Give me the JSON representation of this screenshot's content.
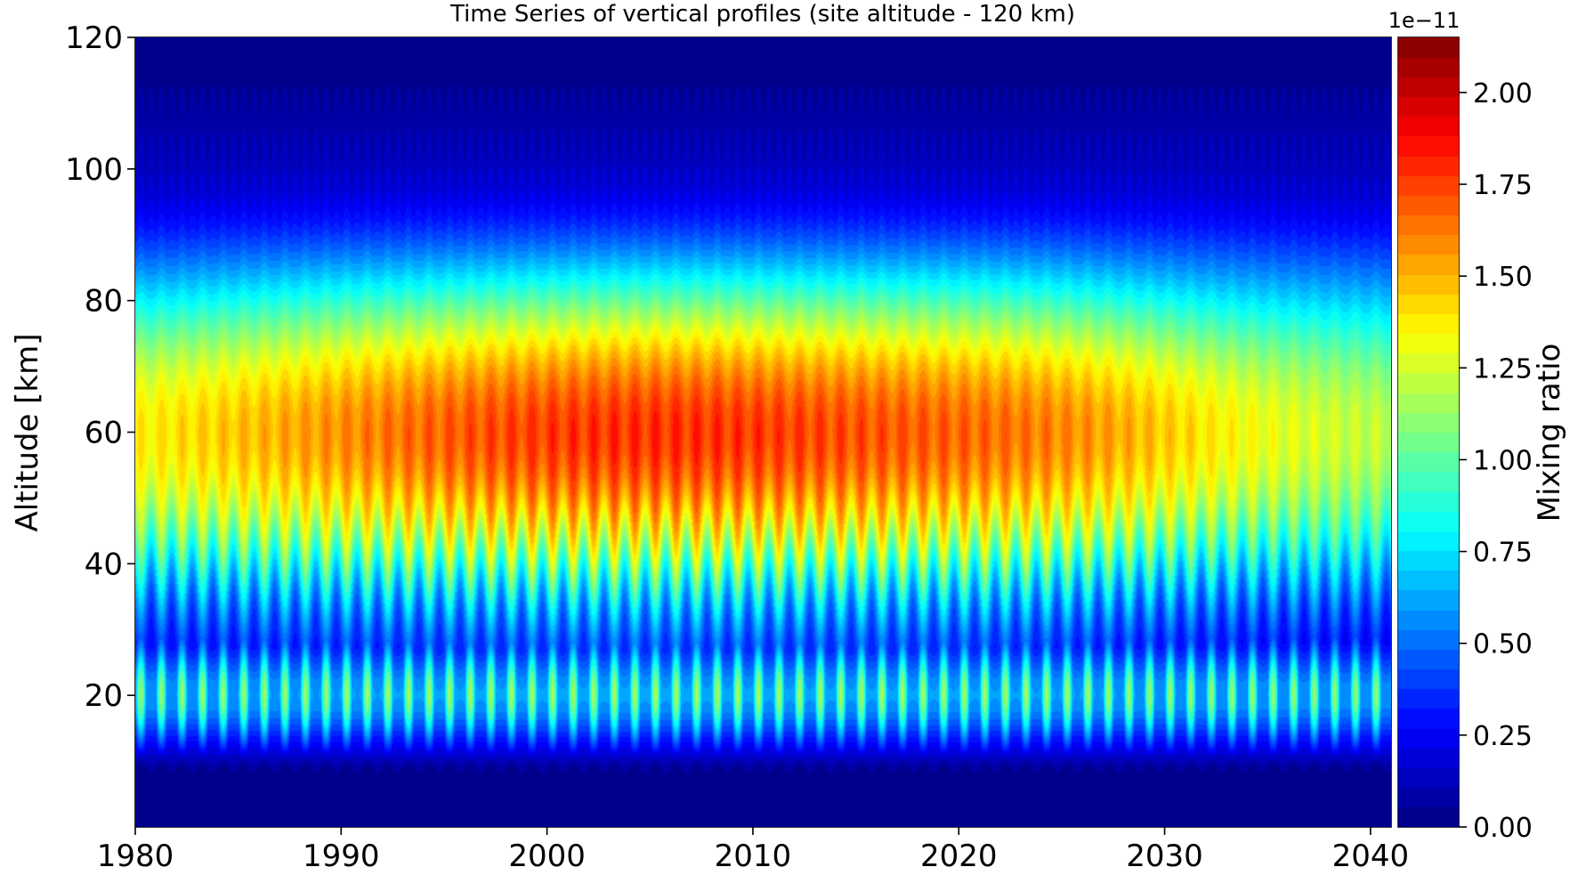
{
  "chart_data": {
    "type": "heatmap",
    "title": "Time Series of vertical profiles (site altitude - 120 km)",
    "xlabel": "",
    "ylabel": "Altitude [km]",
    "xlim": [
      1980,
      2041
    ],
    "ylim": [
      0,
      120
    ],
    "x_ticks": [
      "1980",
      "1990",
      "2000",
      "2010",
      "2020",
      "2030",
      "2040"
    ],
    "y_ticks": [
      "20",
      "40",
      "60",
      "80",
      "100",
      "120"
    ],
    "colormap": "jet",
    "colorbar": {
      "label": "Mixing ratio",
      "scale_label": "1e−11",
      "min": 0.0,
      "max": 2.15,
      "ticks": [
        "0.00",
        "0.25",
        "0.50",
        "0.75",
        "1.00",
        "1.25",
        "1.50",
        "1.75",
        "2.00"
      ]
    },
    "features": {
      "peak_value": 2.1,
      "peak_altitude_km": 60,
      "peak_year": 2005,
      "secondary_layer_altitude_km": 20,
      "seasonal_cycle": "annual oscillation",
      "upper_level_km": 100
    }
  }
}
